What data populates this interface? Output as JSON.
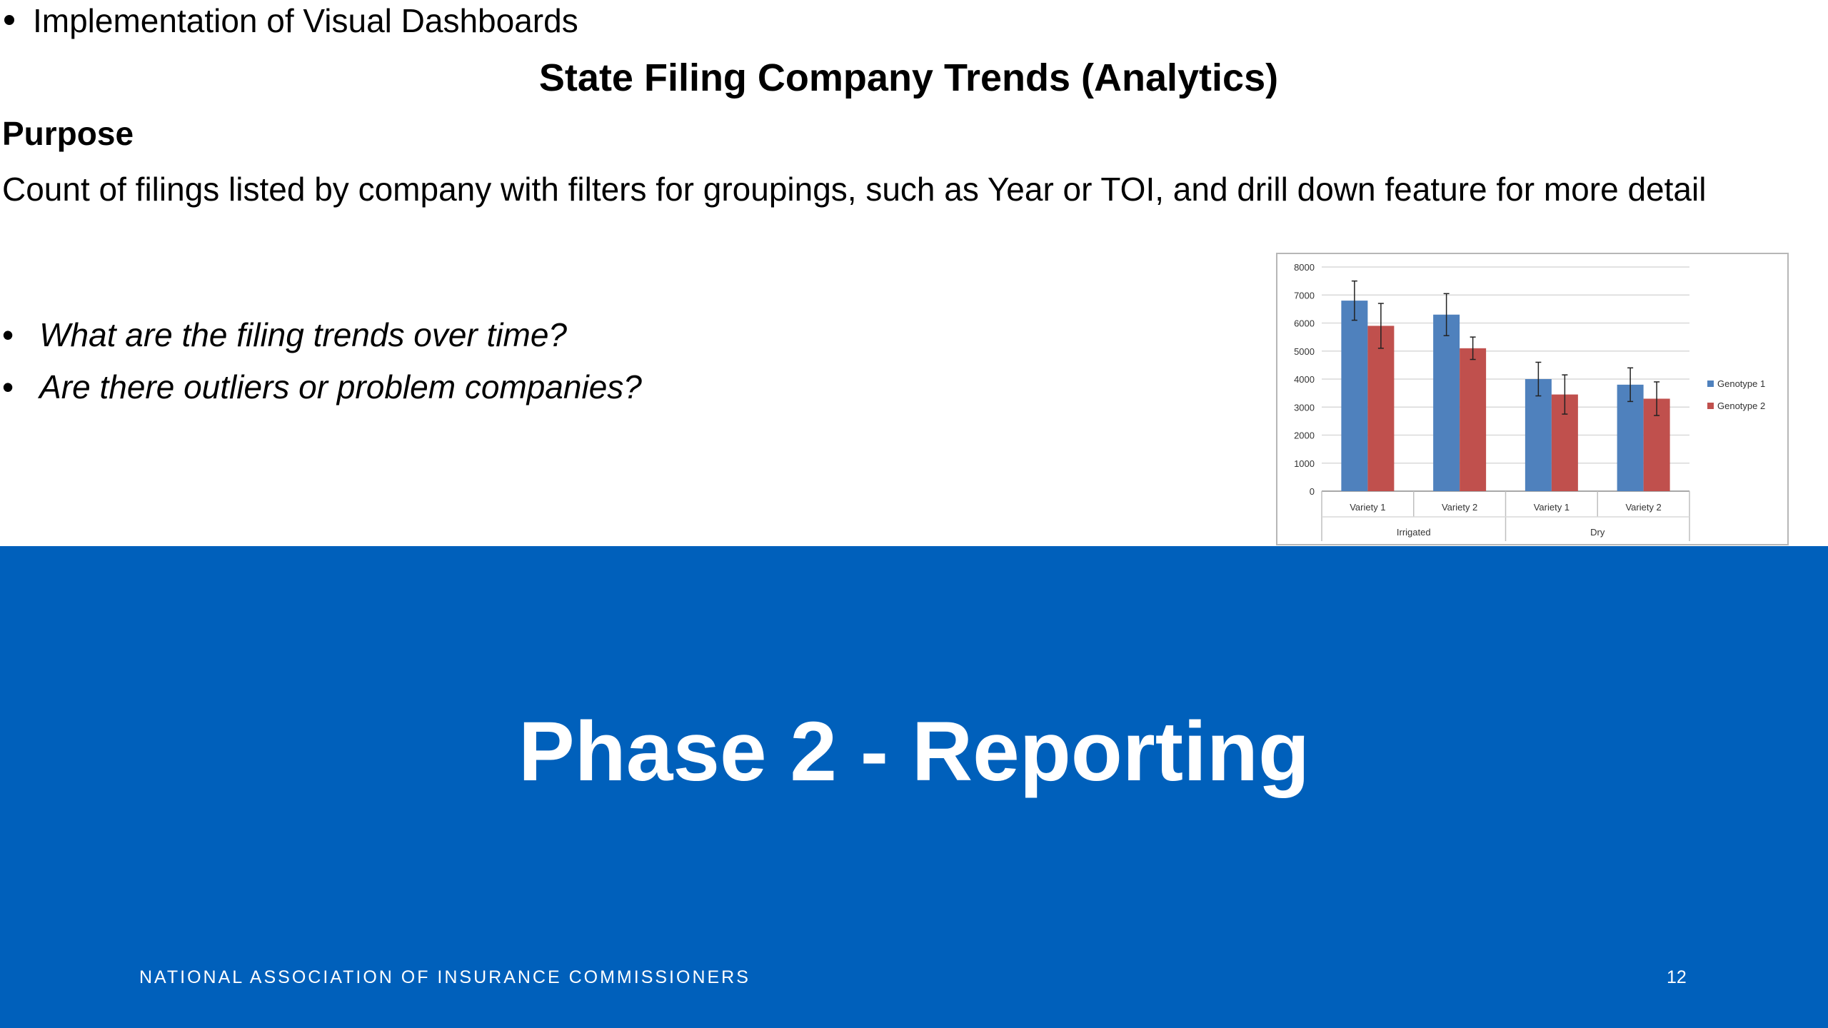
{
  "slide": {
    "top_bullet": "Implementation of Visual Dashboards",
    "section_title": "State Filing Company Trends (Analytics)",
    "purpose_heading": "Purpose",
    "purpose_text": "Count of filings listed by company with filters for groupings, such as Year or TOI, and drill down feature for more detail",
    "questions": [
      "What are the filing trends over time?",
      "Are there outliers or problem companies?"
    ],
    "bullet_glyph": "•"
  },
  "banner": {
    "heading": "Phase 2 - Reporting",
    "organization": "NATIONAL ASSOCIATION OF INSURANCE COMMISSIONERS",
    "page_number": "12",
    "color": "#0060bb"
  },
  "chart_data": {
    "type": "bar",
    "categories": [
      "Variety 1",
      "Variety 2",
      "Variety 1",
      "Variety 2"
    ],
    "groups": [
      {
        "label": "Irrigated",
        "categories": [
          0,
          1
        ]
      },
      {
        "label": "Dry",
        "categories": [
          2,
          3
        ]
      }
    ],
    "series": [
      {
        "name": "Genotype 1",
        "color": "#4f81bd",
        "values": [
          6800,
          6300,
          4000,
          3800
        ],
        "errors": [
          700,
          750,
          600,
          600
        ]
      },
      {
        "name": "Genotype 2",
        "color": "#c0504d",
        "values": [
          5900,
          5100,
          3450,
          3300
        ],
        "errors": [
          800,
          400,
          700,
          600
        ]
      }
    ],
    "ylim": [
      0,
      8000
    ],
    "yticks": [
      "0",
      "1000",
      "2000",
      "3000",
      "4000",
      "5000",
      "6000",
      "7000",
      "8000"
    ],
    "grid": true,
    "legend": "right"
  }
}
